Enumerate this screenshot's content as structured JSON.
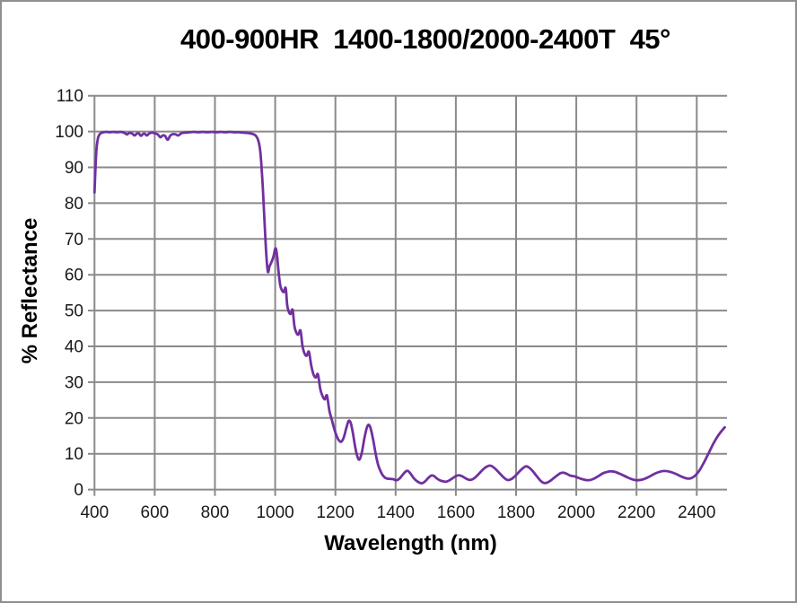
{
  "window": {
    "background": "#ffffff",
    "border_color": "#8f8f8f"
  },
  "chart_data": {
    "type": "line",
    "title": "400-900HR  1400-1800/2000-2400T  45°",
    "xlabel": "Wavelength (nm)",
    "ylabel": "% Reflectance",
    "xlim": [
      400,
      2500
    ],
    "ylim": [
      0,
      110
    ],
    "x_ticks": [
      400,
      600,
      800,
      1000,
      1200,
      1400,
      1600,
      1800,
      2000,
      2200,
      2400
    ],
    "y_ticks": [
      0,
      10,
      20,
      30,
      40,
      50,
      60,
      70,
      80,
      90,
      100,
      110
    ],
    "grid": true,
    "legend": false,
    "line_color": "#7030A0",
    "grid_color": "#8a8a8a",
    "tick_label_color": "#1a1a1a",
    "series": [
      {
        "name": "% Reflectance",
        "points": [
          [
            400,
            83
          ],
          [
            402,
            87.5
          ],
          [
            405,
            93
          ],
          [
            408,
            96.3
          ],
          [
            412,
            98.3
          ],
          [
            416,
            99.1
          ],
          [
            422,
            99.6
          ],
          [
            430,
            99.8
          ],
          [
            440,
            99.9
          ],
          [
            450,
            99.8
          ],
          [
            462,
            99.9
          ],
          [
            475,
            99.8
          ],
          [
            488,
            99.9
          ],
          [
            500,
            99.6
          ],
          [
            508,
            99.2
          ],
          [
            515,
            99.6
          ],
          [
            524,
            99.5
          ],
          [
            533,
            98.9
          ],
          [
            540,
            99.4
          ],
          [
            547,
            99.5
          ],
          [
            554,
            98.8
          ],
          [
            561,
            99.3
          ],
          [
            567,
            99.4
          ],
          [
            574,
            98.9
          ],
          [
            582,
            99.5
          ],
          [
            592,
            99.7
          ],
          [
            601,
            99.5
          ],
          [
            610,
            99.2
          ],
          [
            619,
            98.4
          ],
          [
            626,
            98.9
          ],
          [
            634,
            98.8
          ],
          [
            643,
            97.7
          ],
          [
            652,
            98.9
          ],
          [
            661,
            99.3
          ],
          [
            670,
            99.2
          ],
          [
            678,
            98.9
          ],
          [
            688,
            99.5
          ],
          [
            700,
            99.7
          ],
          [
            715,
            99.8
          ],
          [
            730,
            99.9
          ],
          [
            745,
            99.8
          ],
          [
            760,
            99.9
          ],
          [
            775,
            99.8
          ],
          [
            790,
            99.9
          ],
          [
            805,
            99.8
          ],
          [
            820,
            99.9
          ],
          [
            835,
            99.8
          ],
          [
            850,
            99.9
          ],
          [
            865,
            99.8
          ],
          [
            880,
            99.8
          ],
          [
            895,
            99.7
          ],
          [
            910,
            99.6
          ],
          [
            922,
            99.4
          ],
          [
            932,
            99.1
          ],
          [
            940,
            98.3
          ],
          [
            946,
            96.8
          ],
          [
            951,
            94
          ],
          [
            956,
            88.5
          ],
          [
            961,
            81
          ],
          [
            966,
            72.5
          ],
          [
            971,
            65
          ],
          [
            976,
            60.8
          ],
          [
            981,
            62.3
          ],
          [
            988,
            63.6
          ],
          [
            995,
            65.3
          ],
          [
            1001,
            67.4
          ],
          [
            1006,
            65.5
          ],
          [
            1011,
            61
          ],
          [
            1017,
            57
          ],
          [
            1023,
            55.6
          ],
          [
            1029,
            55.2
          ],
          [
            1035,
            56.3
          ],
          [
            1040,
            51.5
          ],
          [
            1046,
            49.5
          ],
          [
            1052,
            49.1
          ],
          [
            1058,
            50.2
          ],
          [
            1064,
            45.6
          ],
          [
            1071,
            43.7
          ],
          [
            1077,
            43.3
          ],
          [
            1084,
            44.4
          ],
          [
            1091,
            40
          ],
          [
            1098,
            37.9
          ],
          [
            1105,
            37.4
          ],
          [
            1112,
            38.5
          ],
          [
            1120,
            34.5
          ],
          [
            1128,
            32
          ],
          [
            1135,
            31.3
          ],
          [
            1142,
            32.2
          ],
          [
            1150,
            28
          ],
          [
            1158,
            26
          ],
          [
            1165,
            25.2
          ],
          [
            1172,
            26.3
          ],
          [
            1180,
            22
          ],
          [
            1188,
            19.5
          ],
          [
            1196,
            17
          ],
          [
            1205,
            14.8
          ],
          [
            1213,
            13.6
          ],
          [
            1220,
            13.4
          ],
          [
            1228,
            14.6
          ],
          [
            1237,
            17.4
          ],
          [
            1244,
            19.2
          ],
          [
            1251,
            18.6
          ],
          [
            1258,
            15.8
          ],
          [
            1266,
            11.8
          ],
          [
            1273,
            9.2
          ],
          [
            1280,
            8.4
          ],
          [
            1288,
            10.4
          ],
          [
            1296,
            14.2
          ],
          [
            1304,
            17.2
          ],
          [
            1311,
            18.1
          ],
          [
            1318,
            16.8
          ],
          [
            1326,
            13.6
          ],
          [
            1334,
            9.8
          ],
          [
            1342,
            6.9
          ],
          [
            1351,
            4.9
          ],
          [
            1360,
            3.7
          ],
          [
            1370,
            3.1
          ],
          [
            1381,
            3.0
          ],
          [
            1392,
            2.9
          ],
          [
            1403,
            2.6
          ],
          [
            1413,
            3.1
          ],
          [
            1424,
            4.2
          ],
          [
            1434,
            5.1
          ],
          [
            1441,
            5.2
          ],
          [
            1450,
            4.4
          ],
          [
            1460,
            3.2
          ],
          [
            1470,
            2.4
          ],
          [
            1480,
            1.9
          ],
          [
            1489,
            1.8
          ],
          [
            1498,
            2.3
          ],
          [
            1508,
            3.2
          ],
          [
            1518,
            3.9
          ],
          [
            1527,
            3.8
          ],
          [
            1537,
            3.1
          ],
          [
            1547,
            2.6
          ],
          [
            1558,
            2.3
          ],
          [
            1568,
            2.2
          ],
          [
            1579,
            2.6
          ],
          [
            1590,
            3.2
          ],
          [
            1601,
            3.8
          ],
          [
            1611,
            4.0
          ],
          [
            1621,
            3.7
          ],
          [
            1631,
            3.2
          ],
          [
            1641,
            2.8
          ],
          [
            1650,
            2.7
          ],
          [
            1660,
            3.1
          ],
          [
            1671,
            3.9
          ],
          [
            1682,
            4.9
          ],
          [
            1694,
            5.9
          ],
          [
            1705,
            6.5
          ],
          [
            1714,
            6.7
          ],
          [
            1724,
            6.3
          ],
          [
            1736,
            5.4
          ],
          [
            1748,
            4.3
          ],
          [
            1760,
            3.3
          ],
          [
            1771,
            2.7
          ],
          [
            1781,
            2.8
          ],
          [
            1792,
            3.4
          ],
          [
            1804,
            4.4
          ],
          [
            1816,
            5.5
          ],
          [
            1826,
            6.2
          ],
          [
            1834,
            6.5
          ],
          [
            1844,
            6.1
          ],
          [
            1856,
            5.1
          ],
          [
            1868,
            3.8
          ],
          [
            1880,
            2.6
          ],
          [
            1891,
            1.9
          ],
          [
            1902,
            1.9
          ],
          [
            1913,
            2.4
          ],
          [
            1925,
            3.2
          ],
          [
            1937,
            4.0
          ],
          [
            1948,
            4.6
          ],
          [
            1957,
            4.7
          ],
          [
            1968,
            4.4
          ],
          [
            1980,
            3.9
          ],
          [
            1993,
            3.7
          ],
          [
            2006,
            3.3
          ],
          [
            2020,
            2.9
          ],
          [
            2038,
            2.6
          ],
          [
            2055,
            2.9
          ],
          [
            2072,
            3.7
          ],
          [
            2090,
            4.6
          ],
          [
            2105,
            5.0
          ],
          [
            2115,
            5.1
          ],
          [
            2130,
            4.9
          ],
          [
            2150,
            4.2
          ],
          [
            2170,
            3.4
          ],
          [
            2188,
            2.8
          ],
          [
            2203,
            2.6
          ],
          [
            2220,
            2.8
          ],
          [
            2240,
            3.5
          ],
          [
            2260,
            4.4
          ],
          [
            2278,
            5.0
          ],
          [
            2292,
            5.2
          ],
          [
            2310,
            5.0
          ],
          [
            2330,
            4.4
          ],
          [
            2350,
            3.6
          ],
          [
            2368,
            3.1
          ],
          [
            2382,
            3.2
          ],
          [
            2396,
            4.0
          ],
          [
            2410,
            5.5
          ],
          [
            2424,
            7.6
          ],
          [
            2438,
            9.9
          ],
          [
            2452,
            12.3
          ],
          [
            2466,
            14.4
          ],
          [
            2480,
            16.1
          ],
          [
            2493,
            17.4
          ]
        ]
      }
    ]
  }
}
